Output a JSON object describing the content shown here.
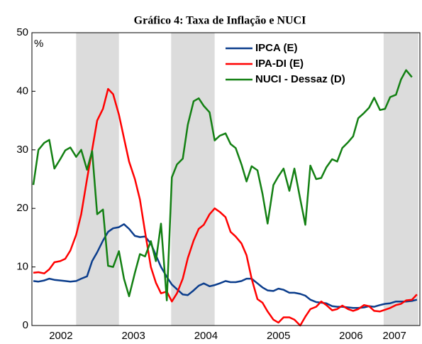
{
  "chart_data": {
    "type": "line",
    "title": "Gráfico 4: Taxa de Inflação  e  NUCI",
    "y_unit": "%",
    "xlim": [
      2002.1,
      2007.45
    ],
    "ylim": [
      0,
      50
    ],
    "yticks": [
      0,
      10,
      20,
      30,
      40,
      50
    ],
    "xticks": [
      {
        "value": 2002.5,
        "label": "2002"
      },
      {
        "value": 2003.5,
        "label": "2003"
      },
      {
        "value": 2004.5,
        "label": "2004"
      },
      {
        "value": 2005.5,
        "label": "2005"
      },
      {
        "value": 2006.5,
        "label": "2006"
      },
      {
        "value": 2007.1,
        "label": "2007"
      }
    ],
    "shaded_periods": [
      [
        2002.71,
        2003.3
      ],
      [
        2004.02,
        2004.62
      ],
      [
        2006.95,
        2007.43
      ]
    ],
    "shade_color": "#dcdcdc",
    "legend": "top",
    "x": [
      2002.12,
      2002.19,
      2002.27,
      2002.34,
      2002.41,
      2002.49,
      2002.56,
      2002.63,
      2002.71,
      2002.78,
      2002.86,
      2002.93,
      2003.0,
      2003.08,
      2003.15,
      2003.22,
      2003.3,
      2003.37,
      2003.44,
      2003.52,
      2003.59,
      2003.66,
      2003.74,
      2003.81,
      2003.88,
      2003.96,
      2004.03,
      2004.1,
      2004.18,
      2004.25,
      2004.33,
      2004.4,
      2004.47,
      2004.55,
      2004.62,
      2004.69,
      2004.77,
      2004.84,
      2004.91,
      2004.99,
      2005.06,
      2005.13,
      2005.21,
      2005.28,
      2005.35,
      2005.43,
      2005.5,
      2005.57,
      2005.65,
      2005.72,
      2005.8,
      2005.87,
      2005.94,
      2006.02,
      2006.09,
      2006.16,
      2006.24,
      2006.31,
      2006.38,
      2006.46,
      2006.53,
      2006.6,
      2006.68,
      2006.75,
      2006.82,
      2006.9,
      2006.97,
      2007.04,
      2007.12,
      2007.19,
      2007.26,
      2007.34,
      2007.41
    ],
    "series": [
      {
        "name": "IPCA (E)",
        "color": "#0b3d8c",
        "values": [
          7.6,
          7.5,
          7.7,
          8.0,
          7.8,
          7.7,
          7.6,
          7.5,
          7.6,
          8.0,
          8.4,
          11.0,
          12.5,
          14.5,
          16.0,
          16.6,
          16.8,
          17.3,
          16.5,
          15.3,
          15.1,
          15.2,
          14.0,
          12.0,
          10.0,
          8.3,
          7.0,
          6.2,
          5.3,
          5.2,
          6.0,
          6.8,
          7.2,
          6.7,
          6.9,
          7.2,
          7.6,
          7.4,
          7.4,
          7.6,
          8.0,
          8.0,
          7.2,
          6.5,
          6.0,
          5.9,
          6.3,
          6.1,
          5.6,
          5.6,
          5.4,
          5.1,
          4.4,
          4.0,
          3.9,
          3.8,
          3.3,
          3.2,
          3.2,
          3.1,
          3.0,
          3.0,
          3.1,
          3.3,
          3.2,
          3.5,
          3.7,
          3.8,
          4.1,
          4.1,
          4.1,
          4.2,
          4.4
        ]
      },
      {
        "name": "IPA-DI (E)",
        "color": "#ff0000",
        "values": [
          9.0,
          9.1,
          8.9,
          9.6,
          10.8,
          11.0,
          11.4,
          12.8,
          15.5,
          19.0,
          25.0,
          30.0,
          35.0,
          37.0,
          40.4,
          39.5,
          36.0,
          32.0,
          28.0,
          25.0,
          21.5,
          16.0,
          10.0,
          7.3,
          5.5,
          5.8,
          4.1,
          5.5,
          8.0,
          11.5,
          14.5,
          16.5,
          17.2,
          19.0,
          20.0,
          19.4,
          18.5,
          16.0,
          15.2,
          14.0,
          12.0,
          8.0,
          4.5,
          3.9,
          2.4,
          1.0,
          0.5,
          1.4,
          1.4,
          1.0,
          0.0,
          1.5,
          2.8,
          3.2,
          4.1,
          3.5,
          2.6,
          2.8,
          3.4,
          2.8,
          2.5,
          2.8,
          3.5,
          3.3,
          2.5,
          2.4,
          2.7,
          3.0,
          3.5,
          3.7,
          4.3,
          4.4,
          5.3
        ]
      },
      {
        "name": "NUCI - Dessaz (D)",
        "color": "#138013",
        "values": [
          24.0,
          30.0,
          31.2,
          31.7,
          26.8,
          28.4,
          29.9,
          30.4,
          28.8,
          30.0,
          26.6,
          29.8,
          19.0,
          19.8,
          10.2,
          10.0,
          12.7,
          8.0,
          5.0,
          9.0,
          12.2,
          11.8,
          14.4,
          11.0,
          17.4,
          4.3,
          25.3,
          27.5,
          28.5,
          34.3,
          38.3,
          38.8,
          37.5,
          36.4,
          31.6,
          32.4,
          32.8,
          31.0,
          30.3,
          27.5,
          24.6,
          27.2,
          26.5,
          22.5,
          17.4,
          24.0,
          25.5,
          26.8,
          23.0,
          26.8,
          21.6,
          17.2,
          27.3,
          25.0,
          25.2,
          27.0,
          28.4,
          28.0,
          30.3,
          31.3,
          32.3,
          35.4,
          36.3,
          37.2,
          38.9,
          36.8,
          37.0,
          39.0,
          39.4,
          42.0,
          43.6,
          42.4,
          null
        ]
      }
    ]
  }
}
